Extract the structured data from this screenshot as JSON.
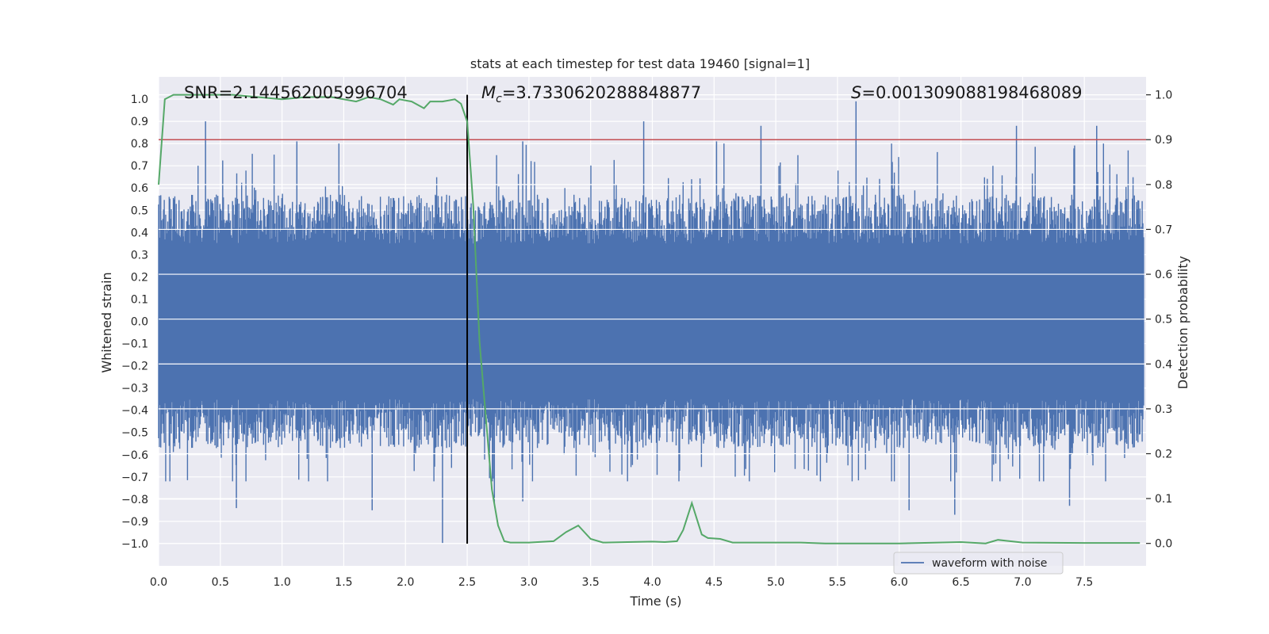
{
  "chart_data": {
    "type": "line",
    "title": "stats at each timestep for test data 19460 [signal=1]",
    "xlabel": "Time (s)",
    "ylabel": "Whitened strain",
    "y2label": "Detection probability",
    "xlim": [
      0.0,
      8.0
    ],
    "ylim": [
      -1.1,
      1.1
    ],
    "y2lim": [
      -0.05,
      1.04
    ],
    "xticks": [
      "0.0",
      "0.5",
      "1.0",
      "1.5",
      "2.0",
      "2.5",
      "3.0",
      "3.5",
      "4.0",
      "4.5",
      "5.0",
      "5.5",
      "6.0",
      "6.5",
      "7.0",
      "7.5"
    ],
    "yticks": [
      "1.0",
      "0.9",
      "0.8",
      "0.7",
      "0.6",
      "0.5",
      "0.4",
      "0.3",
      "0.2",
      "0.1",
      "0.0",
      "−0.1",
      "−0.2",
      "−0.3",
      "−0.4",
      "−0.5",
      "−0.6",
      "−0.7",
      "−0.8",
      "−0.9",
      "−1.0"
    ],
    "y2ticks": [
      "1.0",
      "0.9",
      "0.8",
      "0.7",
      "0.6",
      "0.5",
      "0.4",
      "0.3",
      "0.2",
      "0.1",
      "0.0"
    ],
    "annotations": {
      "snr": "SNR=2.144562005996704",
      "mc_symbol": "M",
      "mc_sub": "c",
      "mc_value": "=3.7330620288848877",
      "s_symbol": "S",
      "s_value": "=0.001309088198468089"
    },
    "threshold": {
      "value": 0.9,
      "axis": "y2",
      "color": "#c44e52"
    },
    "event_time": 2.5,
    "legend": {
      "label": "waveform with noise",
      "position": "lower-right"
    },
    "series": [
      {
        "name": "waveform with noise",
        "axis": "y",
        "color": "#4c72b0",
        "note": "dense noisy strain, amplitude envelope roughly -0.8..0.9",
        "peaks": [
          {
            "x": 0.38,
            "y": 0.9
          },
          {
            "x": 1.12,
            "y": 0.81
          },
          {
            "x": 3.93,
            "y": 0.9
          },
          {
            "x": 4.88,
            "y": 0.88
          },
          {
            "x": 5.65,
            "y": 0.99
          },
          {
            "x": 6.95,
            "y": 0.88
          },
          {
            "x": 7.6,
            "y": 0.88
          },
          {
            "x": 2.95,
            "y": 0.81
          },
          {
            "x": 4.52,
            "y": 0.81
          }
        ],
        "troughs": [
          {
            "x": 2.3,
            "y": -1.0
          },
          {
            "x": 1.73,
            "y": -0.85
          },
          {
            "x": 0.63,
            "y": -0.84
          },
          {
            "x": 6.08,
            "y": -0.85
          },
          {
            "x": 6.45,
            "y": -0.87
          },
          {
            "x": 2.72,
            "y": -0.82
          },
          {
            "x": 7.38,
            "y": -0.83
          },
          {
            "x": 2.95,
            "y": -0.81
          }
        ]
      },
      {
        "name": "detection probability",
        "axis": "y2",
        "color": "#55a868",
        "x": [
          0.0,
          0.05,
          0.12,
          0.2,
          0.4,
          0.6,
          0.8,
          1.0,
          1.2,
          1.4,
          1.6,
          1.7,
          1.8,
          1.9,
          1.95,
          2.05,
          2.15,
          2.2,
          2.3,
          2.4,
          2.45,
          2.5,
          2.55,
          2.6,
          2.7,
          2.75,
          2.8,
          2.85,
          3.0,
          3.2,
          3.3,
          3.4,
          3.5,
          3.6,
          3.8,
          4.0,
          4.1,
          4.2,
          4.25,
          4.32,
          4.4,
          4.45,
          4.55,
          4.65,
          5.0,
          5.2,
          5.4,
          6.0,
          6.5,
          6.7,
          6.8,
          7.0,
          7.5,
          7.95
        ],
        "y": [
          0.8,
          0.99,
          1.0,
          1.0,
          1.0,
          1.0,
          0.995,
          0.99,
          0.995,
          0.995,
          0.985,
          0.995,
          0.99,
          0.978,
          0.99,
          0.985,
          0.97,
          0.985,
          0.985,
          0.99,
          0.98,
          0.94,
          0.75,
          0.45,
          0.12,
          0.04,
          0.005,
          0.002,
          0.002,
          0.005,
          0.025,
          0.04,
          0.01,
          0.002,
          0.003,
          0.004,
          0.003,
          0.005,
          0.03,
          0.09,
          0.02,
          0.012,
          0.01,
          0.002,
          0.002,
          0.002,
          0.0,
          0.0,
          0.003,
          0.0,
          0.008,
          0.002,
          0.001,
          0.001
        ]
      }
    ]
  }
}
